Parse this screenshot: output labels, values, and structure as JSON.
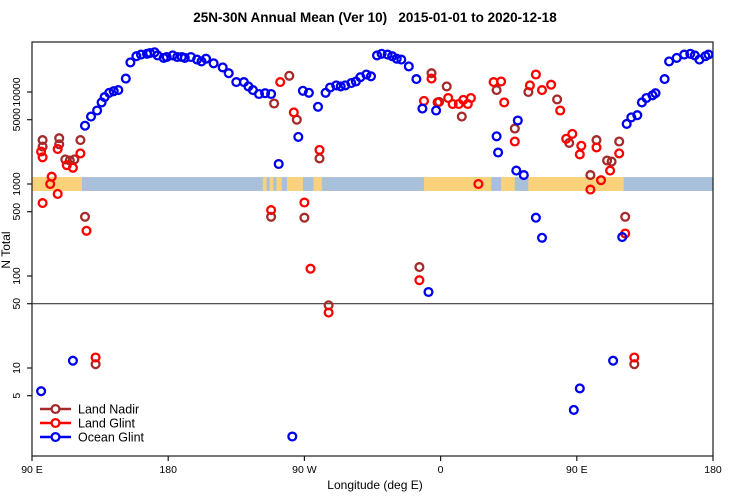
{
  "title": "25N-30N Annual Mean (Ver 10)   2015-01-01 to 2020-12-18",
  "colors": {
    "background": "#ffffff",
    "box": "#1a1a1a",
    "reference_line": "#3a3a3a",
    "land_nadir": "#A52A2A",
    "land_glint": "#FF0000",
    "ocean_glint": "#0000EE",
    "strip_land": "#FAD27C",
    "strip_ocean": "#A9C0DB"
  },
  "chart_data": {
    "type": "scatter",
    "title": "25N-30N Annual Mean (Ver 10)   2015-01-01 to 2020-12-18",
    "xlabel": "Longitude (deg E)",
    "ylabel": "N Total",
    "x_axis": {
      "units": "deg E (wrapping eastward)",
      "range": [
        90,
        540
      ],
      "ticks": [
        {
          "lon": 90,
          "label": "90 E"
        },
        {
          "lon": 180,
          "label": "180"
        },
        {
          "lon": 270,
          "label": "90 W"
        },
        {
          "lon": 360,
          "label": "0"
        },
        {
          "lon": 450,
          "label": "90 E"
        },
        {
          "lon": 540,
          "label": "180"
        }
      ]
    },
    "y_axis": {
      "scale": "log10",
      "range": [
        1,
        36000
      ],
      "ticks": [
        {
          "v": 5,
          "label": "5"
        },
        {
          "v": 10,
          "label": "10"
        },
        {
          "v": 50,
          "label": "50"
        },
        {
          "v": 100,
          "label": "100"
        },
        {
          "v": 500,
          "label": "500"
        },
        {
          "v": 1000,
          "label": "1000"
        },
        {
          "v": 5000,
          "label": "5000"
        },
        {
          "v": 10000,
          "label": "10000"
        }
      ]
    },
    "reference_line_y": 50,
    "map_strip": {
      "description": "land/ocean strip for 25N-30N drawn across plot near N=1000",
      "value_band": [
        840,
        1190
      ],
      "land_segments_deg": [
        [
          90,
          123
        ],
        [
          242.5,
          245
        ],
        [
          247,
          249.5
        ],
        [
          251.5,
          255
        ],
        [
          258.5,
          269
        ],
        [
          276,
          281.5
        ],
        [
          349,
          393.5
        ],
        [
          400,
          409
        ],
        [
          418,
          481
        ]
      ]
    },
    "legend_position": "bottom-left",
    "series": [
      {
        "name": "Land Nadir",
        "color_key": "land_nadir",
        "points": [
          [
            97,
            3000
          ],
          [
            97,
            2550
          ],
          [
            108,
            3150
          ],
          [
            108,
            2700
          ],
          [
            112,
            1850
          ],
          [
            115,
            1800
          ],
          [
            118,
            1850
          ],
          [
            122,
            3000
          ],
          [
            125,
            440
          ],
          [
            132,
            11
          ],
          [
            248,
            440
          ],
          [
            250,
            7500
          ],
          [
            260,
            15000
          ],
          [
            265,
            5000
          ],
          [
            270,
            430
          ],
          [
            280,
            1900
          ],
          [
            286,
            48
          ],
          [
            346,
            125
          ],
          [
            354,
            16000
          ],
          [
            359,
            7800
          ],
          [
            364,
            11500
          ],
          [
            374,
            5400
          ],
          [
            397,
            10500
          ],
          [
            409,
            4000
          ],
          [
            418,
            10000
          ],
          [
            437,
            8300
          ],
          [
            445,
            2800
          ],
          [
            459,
            1250
          ],
          [
            463,
            3000
          ],
          [
            470,
            1800
          ],
          [
            473,
            1750
          ],
          [
            478,
            2900
          ],
          [
            482,
            440
          ],
          [
            488,
            11
          ]
        ]
      },
      {
        "name": "Land Glint",
        "color_key": "land_glint",
        "points": [
          [
            96,
            2250
          ],
          [
            97,
            1950
          ],
          [
            97,
            620
          ],
          [
            102,
            1000
          ],
          [
            103,
            1200
          ],
          [
            107,
            780
          ],
          [
            107,
            2400
          ],
          [
            113,
            1600
          ],
          [
            117,
            1500
          ],
          [
            122,
            2150
          ],
          [
            126,
            310
          ],
          [
            132,
            13
          ],
          [
            248,
            520
          ],
          [
            254,
            12800
          ],
          [
            263,
            6000
          ],
          [
            270,
            630
          ],
          [
            274,
            120
          ],
          [
            280,
            2350
          ],
          [
            286,
            40
          ],
          [
            346,
            90
          ],
          [
            349,
            8000
          ],
          [
            354,
            14000
          ],
          [
            358,
            7700
          ],
          [
            365,
            8600
          ],
          [
            368,
            7400
          ],
          [
            372,
            7400
          ],
          [
            375,
            8200
          ],
          [
            378,
            7400
          ],
          [
            380,
            8600
          ],
          [
            385,
            1000
          ],
          [
            395,
            12800
          ],
          [
            400,
            13000
          ],
          [
            402,
            7700
          ],
          [
            409,
            2900
          ],
          [
            419,
            11800
          ],
          [
            423,
            15500
          ],
          [
            427,
            10500
          ],
          [
            433,
            12000
          ],
          [
            439,
            6300
          ],
          [
            443,
            3100
          ],
          [
            447,
            3500
          ],
          [
            452,
            2100
          ],
          [
            453,
            2600
          ],
          [
            459,
            870
          ],
          [
            463,
            2500
          ],
          [
            466,
            1100
          ],
          [
            472,
            1400
          ],
          [
            478,
            2150
          ],
          [
            482,
            290
          ],
          [
            488,
            13
          ]
        ]
      },
      {
        "name": "Ocean Glint",
        "color_key": "ocean_glint",
        "points": [
          [
            96,
            5.6
          ],
          [
            117,
            12
          ],
          [
            125,
            4300
          ],
          [
            129,
            5400
          ],
          [
            133,
            6300
          ],
          [
            136,
            7700
          ],
          [
            138,
            8800
          ],
          [
            141,
            9800
          ],
          [
            144,
            10200
          ],
          [
            147,
            10500
          ],
          [
            152,
            14000
          ],
          [
            155,
            21000
          ],
          [
            159,
            24500
          ],
          [
            162,
            25500
          ],
          [
            166,
            26000
          ],
          [
            168,
            26500
          ],
          [
            171,
            27000
          ],
          [
            173,
            25000
          ],
          [
            177,
            23500
          ],
          [
            179,
            24000
          ],
          [
            183,
            25000
          ],
          [
            186,
            24000
          ],
          [
            189,
            24000
          ],
          [
            191,
            23500
          ],
          [
            195,
            24000
          ],
          [
            199,
            22500
          ],
          [
            202,
            21500
          ],
          [
            205,
            23000
          ],
          [
            210,
            20500
          ],
          [
            216,
            18500
          ],
          [
            220,
            16000
          ],
          [
            225,
            12800
          ],
          [
            230,
            12800
          ],
          [
            233,
            11500
          ],
          [
            236,
            10500
          ],
          [
            240,
            9500
          ],
          [
            244,
            9700
          ],
          [
            248,
            9500
          ],
          [
            253,
            1650
          ],
          [
            262,
            1.8
          ],
          [
            266,
            3250
          ],
          [
            269,
            10300
          ],
          [
            273,
            9800
          ],
          [
            279,
            6900
          ],
          [
            284,
            9800
          ],
          [
            287,
            11200
          ],
          [
            291,
            11800
          ],
          [
            294,
            11500
          ],
          [
            297,
            11800
          ],
          [
            301,
            12500
          ],
          [
            304,
            13000
          ],
          [
            307,
            14500
          ],
          [
            311,
            15500
          ],
          [
            314,
            14800
          ],
          [
            318,
            25000
          ],
          [
            321,
            26000
          ],
          [
            325,
            25500
          ],
          [
            328,
            24500
          ],
          [
            331,
            23000
          ],
          [
            334,
            22500
          ],
          [
            339,
            19000
          ],
          [
            344,
            13800
          ],
          [
            348,
            6600
          ],
          [
            352,
            67
          ],
          [
            357,
            6300
          ],
          [
            397,
            3300
          ],
          [
            398,
            2200
          ],
          [
            410,
            1400
          ],
          [
            411,
            4900
          ],
          [
            415,
            1250
          ],
          [
            423,
            430
          ],
          [
            427,
            260
          ],
          [
            448,
            3.5
          ],
          [
            452,
            6
          ],
          [
            474,
            12
          ],
          [
            480,
            265
          ],
          [
            483,
            4500
          ],
          [
            486,
            5300
          ],
          [
            490,
            5600
          ],
          [
            493,
            7700
          ],
          [
            496,
            8600
          ],
          [
            500,
            9200
          ],
          [
            502,
            9700
          ],
          [
            508,
            13800
          ],
          [
            511,
            21500
          ],
          [
            516,
            23500
          ],
          [
            521,
            25500
          ],
          [
            525,
            26000
          ],
          [
            528,
            25000
          ],
          [
            531,
            22500
          ],
          [
            535,
            24500
          ],
          [
            537,
            25500
          ]
        ]
      }
    ]
  },
  "legend": {
    "items": [
      {
        "label": "Land Nadir",
        "color_key": "land_nadir"
      },
      {
        "label": "Land Glint",
        "color_key": "land_glint"
      },
      {
        "label": "Ocean Glint",
        "color_key": "ocean_glint"
      }
    ]
  }
}
